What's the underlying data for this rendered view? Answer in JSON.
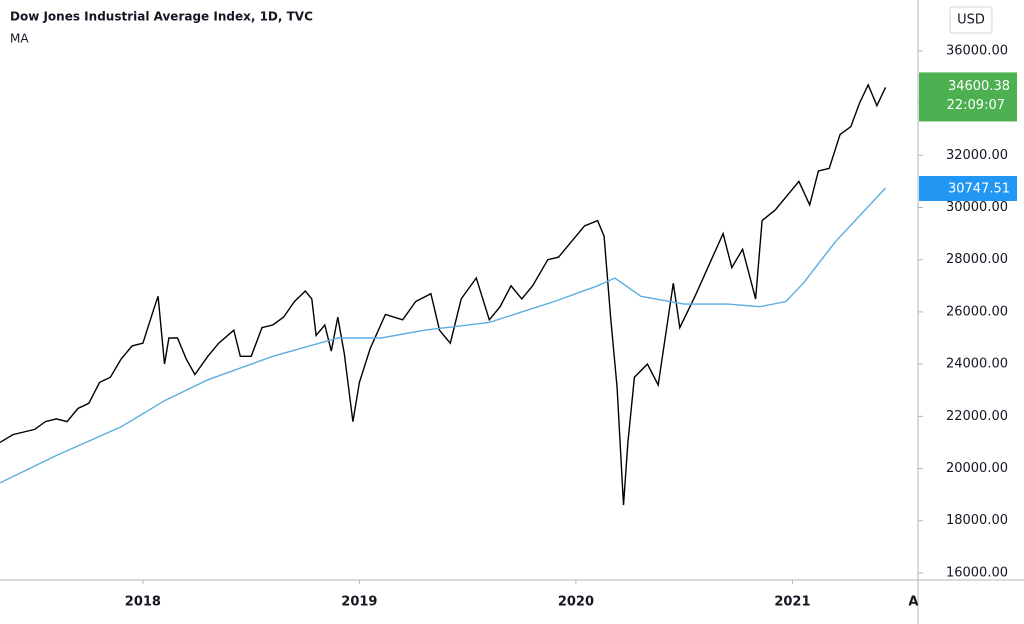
{
  "chart_data": {
    "type": "line",
    "title": "Dow Jones Industrial Average Index, 1D, TVC",
    "currency": "USD",
    "countdown": "22:09:07",
    "xlim": [
      2017.34,
      2021.58
    ],
    "xticks": [
      {
        "value": 2018,
        "label": "2018"
      },
      {
        "value": 2019,
        "label": "2019"
      },
      {
        "value": 2020,
        "label": "2020"
      },
      {
        "value": 2021,
        "label": "2021"
      },
      {
        "value": 2021.58,
        "label": "Au"
      }
    ],
    "ylim": [
      15730,
      37950
    ],
    "yticks": [
      {
        "value": 16000,
        "label": "16000.00"
      },
      {
        "value": 18000,
        "label": "18000.00"
      },
      {
        "value": 20000,
        "label": "20000.00"
      },
      {
        "value": 22000,
        "label": "22000.00"
      },
      {
        "value": 24000,
        "label": "24000.00"
      },
      {
        "value": 26000,
        "label": "26000.00"
      },
      {
        "value": 28000,
        "label": "28000.00"
      },
      {
        "value": 30000,
        "label": "30000.00"
      },
      {
        "value": 32000,
        "label": "32000.00"
      },
      {
        "value": 34000,
        "label": "34000.00"
      },
      {
        "value": 36000,
        "label": "36000.00"
      }
    ],
    "series": [
      {
        "color": "#000000",
        "tag_color": "#4caf50",
        "x": [
          2017.34,
          2017.4,
          2017.45,
          2017.5,
          2017.55,
          2017.6,
          2017.65,
          2017.7,
          2017.75,
          2017.8,
          2017.85,
          2017.9,
          2017.95,
          2018.0,
          2018.05,
          2018.07,
          2018.1,
          2018.12,
          2018.16,
          2018.2,
          2018.24,
          2018.3,
          2018.35,
          2018.42,
          2018.45,
          2018.5,
          2018.55,
          2018.6,
          2018.65,
          2018.7,
          2018.75,
          2018.78,
          2018.8,
          2018.84,
          2018.87,
          2018.9,
          2018.93,
          2018.97,
          2019.0,
          2019.05,
          2019.12,
          2019.2,
          2019.26,
          2019.33,
          2019.37,
          2019.42,
          2019.47,
          2019.54,
          2019.6,
          2019.65,
          2019.7,
          2019.75,
          2019.8,
          2019.87,
          2019.92,
          2019.97,
          2020.04,
          2020.1,
          2020.13,
          2020.16,
          2020.19,
          2020.22,
          2020.24,
          2020.27,
          2020.33,
          2020.38,
          2020.45,
          2020.48,
          2020.55,
          2020.62,
          2020.68,
          2020.72,
          2020.77,
          2020.83,
          2020.86,
          2020.92,
          2020.97,
          2021.03,
          2021.08,
          2021.12,
          2021.17,
          2021.22,
          2021.27,
          2021.31,
          2021.35,
          2021.39,
          2021.43
        ],
        "values": [
          21000,
          21300,
          21400,
          21500,
          21800,
          21900,
          21800,
          22300,
          22500,
          23300,
          23500,
          24200,
          24700,
          24800,
          26100,
          26600,
          24000,
          25000,
          25000,
          24200,
          23600,
          24300,
          24800,
          25300,
          24300,
          24300,
          25400,
          25500,
          25800,
          26400,
          26800,
          26500,
          25100,
          25500,
          24500,
          25800,
          24400,
          21800,
          23300,
          24600,
          25900,
          25700,
          26400,
          26700,
          25300,
          24800,
          26500,
          27300,
          25700,
          26200,
          27000,
          26500,
          27000,
          28000,
          28100,
          28600,
          29300,
          29500,
          28900,
          25800,
          23100,
          18600,
          21000,
          23500,
          24000,
          23200,
          27100,
          25400,
          26600,
          27900,
          29000,
          27700,
          28400,
          26500,
          29500,
          29900,
          30400,
          31000,
          30100,
          31400,
          31500,
          32800,
          33100,
          34000,
          34700,
          33900,
          34600.38
        ]
      },
      {
        "name": "MA",
        "color": "#5aaee0",
        "tag_color": "#2196f3",
        "x": [
          2017.34,
          2017.6,
          2017.9,
          2018.1,
          2018.3,
          2018.6,
          2018.9,
          2019.1,
          2019.3,
          2019.6,
          2019.9,
          2020.1,
          2020.18,
          2020.3,
          2020.5,
          2020.7,
          2020.85,
          2020.97,
          2021.05,
          2021.2,
          2021.43
        ],
        "values": [
          19450,
          20500,
          21600,
          22600,
          23400,
          24300,
          25000,
          25000,
          25300,
          25600,
          26400,
          27000,
          27300,
          26600,
          26300,
          26300,
          26200,
          26400,
          27100,
          28700,
          30747.51
        ]
      }
    ]
  }
}
